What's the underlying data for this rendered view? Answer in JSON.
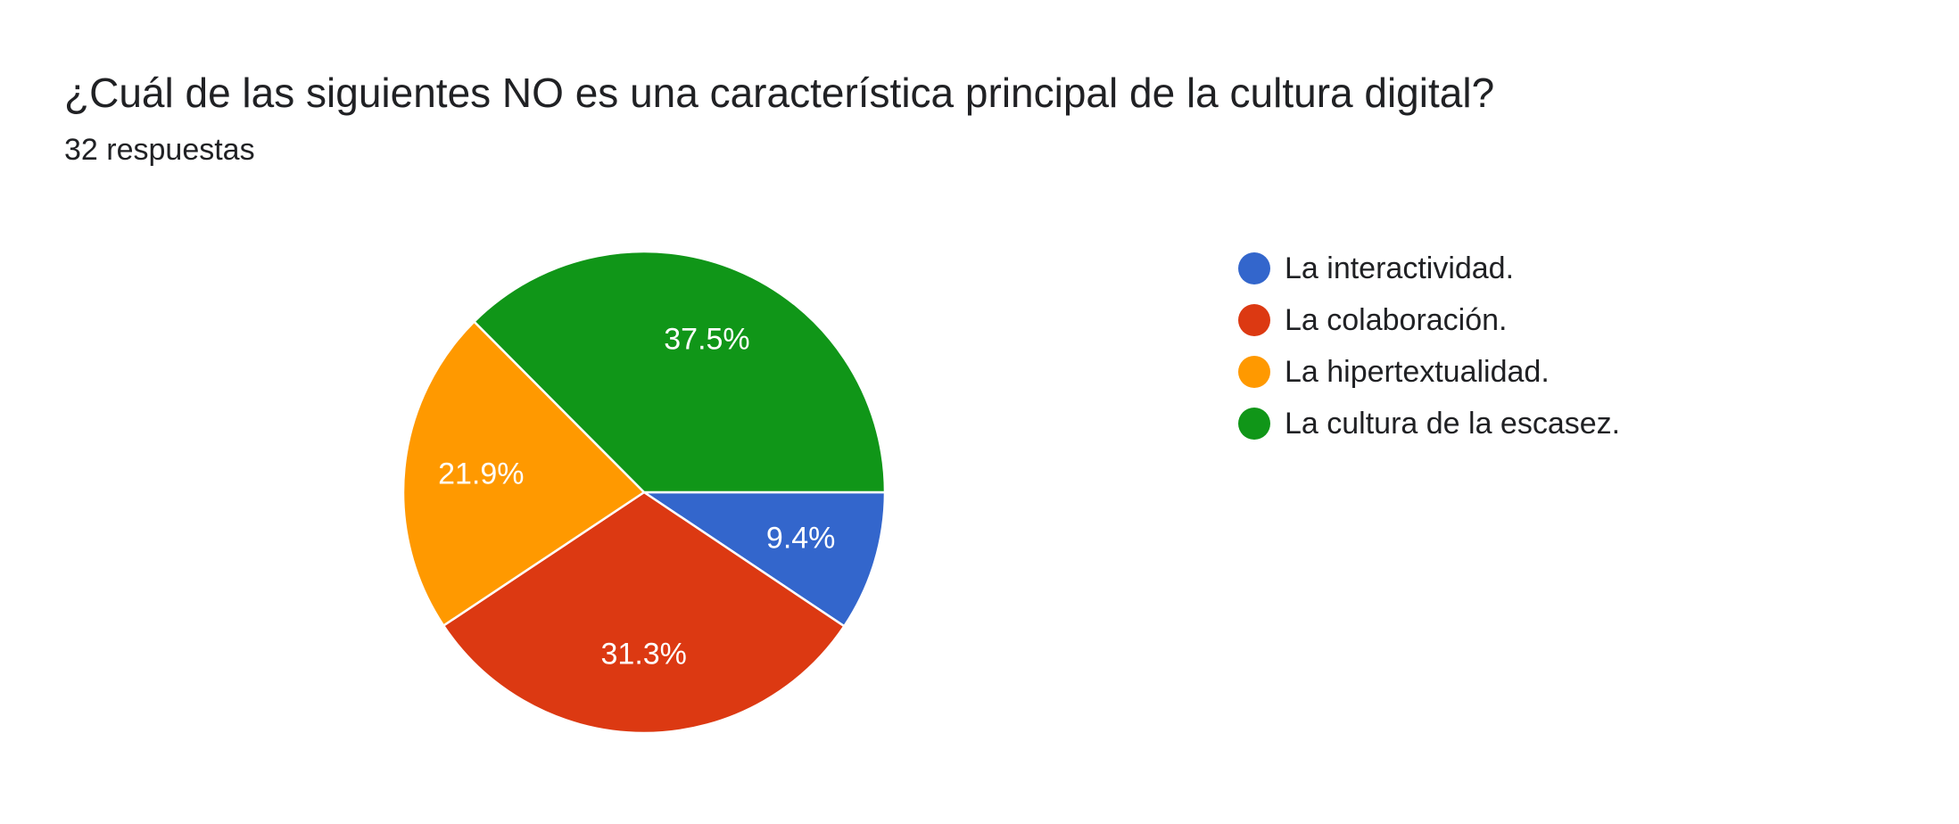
{
  "chart_data": {
    "type": "pie",
    "title": "¿Cuál de las siguientes NO es una característica principal de la cultura digital?",
    "subtitle": "32 respuestas",
    "legend_position": "right",
    "slices": [
      {
        "label": "La interactividad.",
        "value": 9.4,
        "display": "9.4%",
        "color": "#3366CC"
      },
      {
        "label": "La colaboración.",
        "value": 31.3,
        "display": "31.3%",
        "color": "#DC3912"
      },
      {
        "label": "La hipertextualidad.",
        "value": 21.9,
        "display": "21.9%",
        "color": "#FF9900"
      },
      {
        "label": "La cultura de la escasez.",
        "value": 37.5,
        "display": "37.5%",
        "color": "#109618"
      }
    ]
  }
}
